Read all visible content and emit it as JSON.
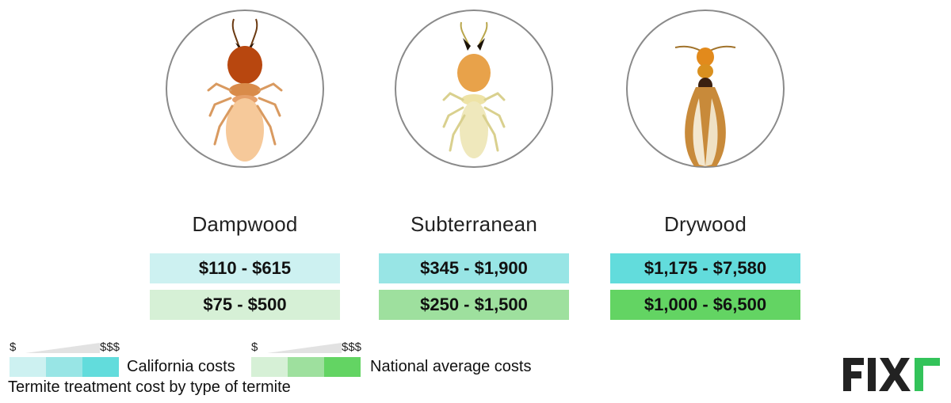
{
  "chart_data": {
    "type": "table",
    "title": "",
    "caption": "Termite treatment cost by type of termite",
    "categories": [
      "Dampwood",
      "Subterranean",
      "Drywood"
    ],
    "series": [
      {
        "name": "California costs",
        "values": [
          [
            110,
            615
          ],
          [
            345,
            1900
          ],
          [
            1175,
            7580
          ]
        ],
        "labels": [
          "$110 - $615",
          "$345 - $1,900",
          "$1,175 - $7,580"
        ]
      },
      {
        "name": "National average costs",
        "values": [
          [
            75,
            500
          ],
          [
            250,
            1500
          ],
          [
            1000,
            6500
          ]
        ],
        "labels": [
          "$75 - $500",
          "$250 - $1,500",
          "$1,000 - $6,500"
        ]
      }
    ],
    "legend_scale": {
      "low": "$",
      "high": "$$$"
    }
  },
  "colors": {
    "california": [
      "#cdf1f1",
      "#98e5e5",
      "#62dcdc"
    ],
    "national": [
      "#d6f0d6",
      "#9ee09e",
      "#63d463"
    ],
    "logo_dark": "#222222",
    "logo_green": "#33c35a"
  },
  "icons": [
    "dampwood-termite-icon",
    "subterranean-termite-icon",
    "drywood-termite-icon"
  ],
  "brand": {
    "logo": "FIXR"
  }
}
